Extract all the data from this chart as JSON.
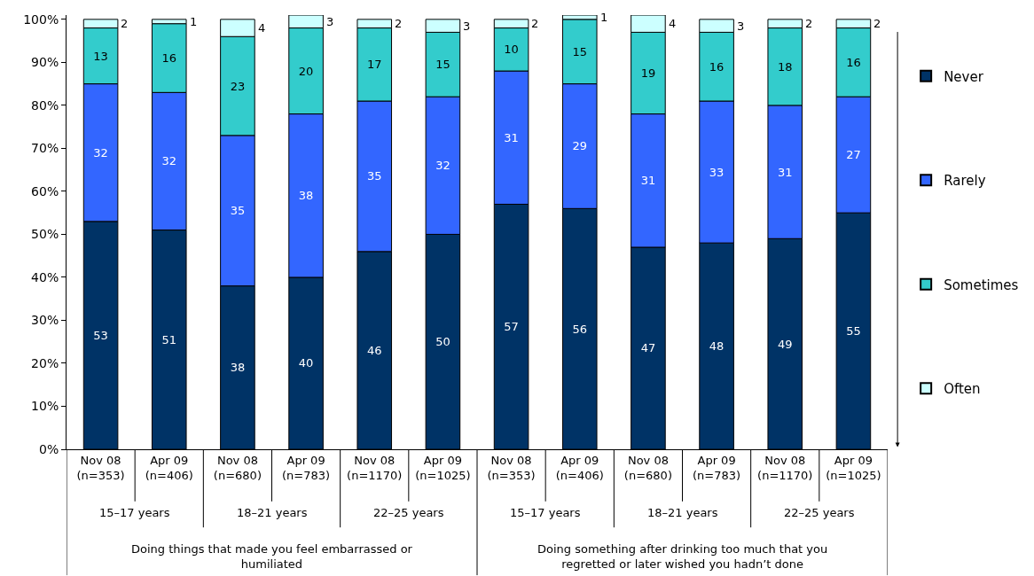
{
  "chart_data": {
    "type": "bar",
    "stacked": true,
    "categories": [
      "Nov 08\n(n=353)",
      "Apr 09\n(n=406)",
      "Nov 08\n(n=680)",
      "Apr 09\n(n=783)",
      "Nov 08\n(n=1170)",
      "Apr 09\n(n=1025)",
      "Nov 08\n(n=353)",
      "Apr 09\n(n=406)",
      "Nov 08\n(n=680)",
      "Apr 09\n(n=783)",
      "Nov 08\n(n=1170)",
      "Apr 09\n(n=1025)"
    ],
    "series": [
      {
        "name": "Never",
        "color": "#003366",
        "values": [
          53,
          51,
          38,
          40,
          46,
          50,
          57,
          56,
          47,
          48,
          49,
          55
        ]
      },
      {
        "name": "Rarely",
        "color": "#3366ff",
        "values": [
          32,
          32,
          35,
          38,
          35,
          32,
          31,
          29,
          31,
          33,
          31,
          27
        ]
      },
      {
        "name": "Sometimes",
        "color": "#33cccc",
        "values": [
          13,
          16,
          23,
          20,
          17,
          15,
          10,
          15,
          19,
          16,
          18,
          16
        ]
      },
      {
        "name": "Often",
        "color": "#ccffff",
        "values": [
          2,
          1,
          4,
          3,
          2,
          3,
          2,
          1,
          4,
          3,
          2,
          2
        ]
      }
    ],
    "annotations": [
      "15–17 years",
      "18–21 years",
      "22–25 years",
      "15–17 years",
      "18–21 years",
      "22–25 years",
      "Doing things that made you feel embarrassed or\nhumiliated",
      "Doing something after drinking too much that you\nregretted or later wished you hadn’t done"
    ],
    "ylim": [
      0,
      101
    ],
    "yticks": [
      {
        "value": 0,
        "label": "0%"
      },
      {
        "value": 10,
        "label": "10%"
      },
      {
        "value": 20,
        "label": "20%"
      },
      {
        "value": 30,
        "label": "30%"
      },
      {
        "value": 40,
        "label": "40%"
      },
      {
        "value": 50,
        "label": "50%"
      },
      {
        "value": 60,
        "label": "60%"
      },
      {
        "value": 70,
        "label": "70%"
      },
      {
        "value": 80,
        "label": "80%"
      },
      {
        "value": 90,
        "label": "90%"
      },
      {
        "value": 100,
        "label": "100%"
      }
    ],
    "data_labels": true,
    "legend": "right"
  }
}
